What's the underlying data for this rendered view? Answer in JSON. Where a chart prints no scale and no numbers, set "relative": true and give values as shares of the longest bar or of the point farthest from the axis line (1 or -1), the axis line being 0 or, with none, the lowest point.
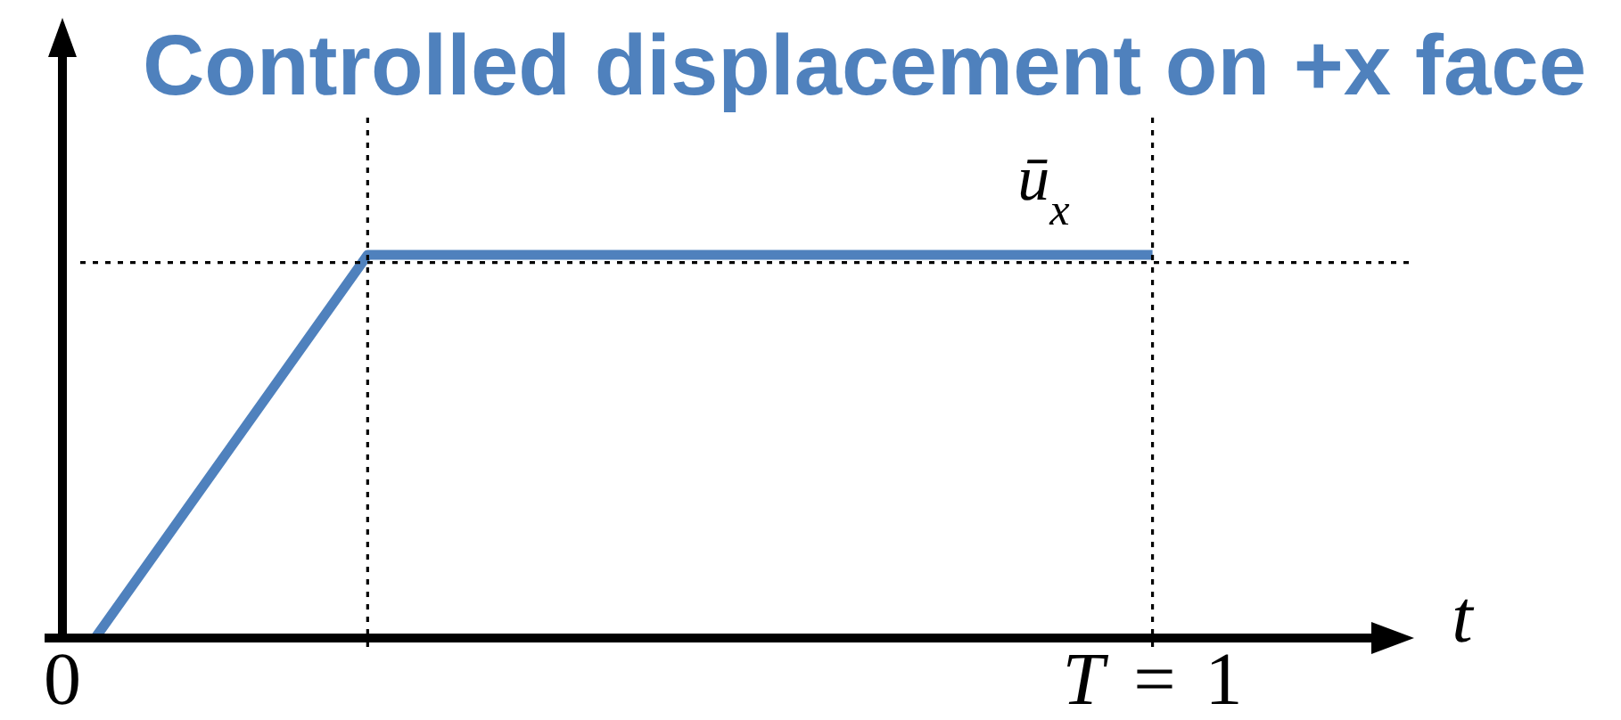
{
  "chart_data": {
    "type": "line",
    "title": "Controlled displacement on +x face",
    "xlabel": "t",
    "relative": true,
    "x": [
      0.03,
      0.28,
      1
    ],
    "xlim": [
      0,
      1.24
    ],
    "xticks": [
      0,
      {
        "value": 1,
        "label": "T = 1"
      }
    ],
    "series": [
      {
        "color": "#4f81bd",
        "values": [
          0,
          1,
          1
        ]
      }
    ],
    "ref_lines": [
      {
        "axis": "x",
        "value": 0.28,
        "color": "#000000",
        "line_style": "dotted"
      },
      {
        "axis": "x",
        "value": 1,
        "color": "#000000",
        "line_style": "dotted"
      },
      {
        "axis": "y",
        "value": 0.98,
        "color": "#000000",
        "line_style": "dotted"
      }
    ],
    "annotations": [
      {
        "text": "ū$_{x}$",
        "x": 0.9,
        "y": 1
      }
    ],
    "line_style": "solid"
  }
}
